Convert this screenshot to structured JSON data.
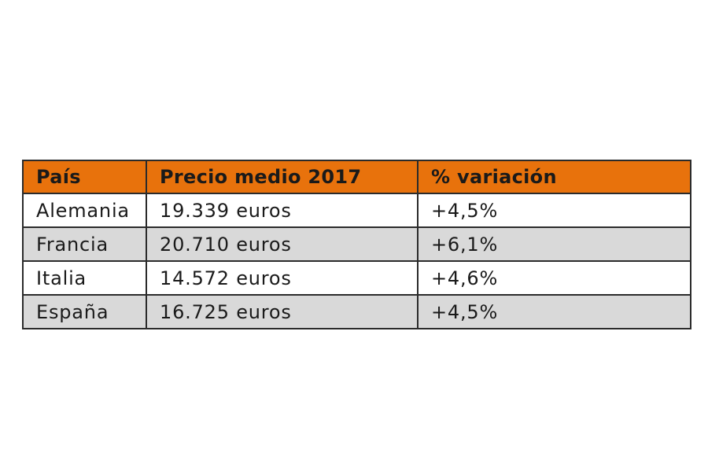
{
  "table": {
    "headers": [
      "País",
      "Precio medio 2017",
      "% variación"
    ],
    "rows": [
      [
        "Alemania",
        "19.339 euros",
        "+4,5%"
      ],
      [
        "Francia",
        "20.710 euros",
        "+6,1%"
      ],
      [
        "Italia",
        "14.572 euros",
        "+4,6%"
      ],
      [
        "España",
        "16.725 euros",
        "+4,5%"
      ]
    ]
  },
  "colors": {
    "header_background": "#e8720c",
    "alternate_row_background": "#d9d9d9",
    "border": "#2b2b2b"
  }
}
